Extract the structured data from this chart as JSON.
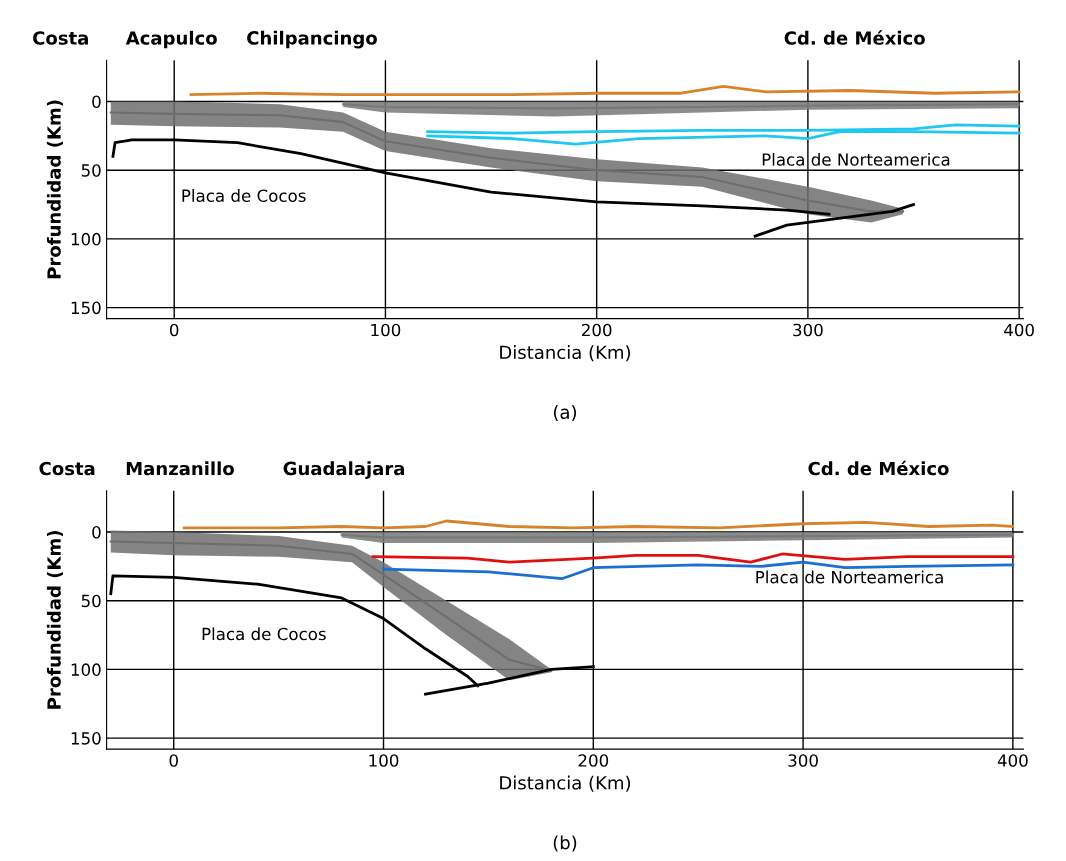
{
  "chart_data": [
    {
      "type": "line",
      "title": "(a)",
      "xlabel": "Distancia (Km)",
      "ylabel": "Profundidad (Km)",
      "xlim": [
        -32,
        402
      ],
      "ylim": [
        158,
        -30
      ],
      "xticks": [
        0,
        100,
        200,
        300,
        400
      ],
      "yticks": [
        0,
        50,
        100,
        150
      ],
      "grid": true,
      "annotations": [
        "Costa",
        "Acapulco",
        "Chilpancingo",
        "Cd. de México",
        "Placa de Norteamerica",
        "Placa de Cocos"
      ],
      "series": [
        {
          "type": "line",
          "color": "#6e6e6e",
          "x": [
            -30,
            0,
            50,
            80,
            100,
            150,
            200,
            250,
            300,
            330,
            345
          ],
          "values": [
            8,
            9,
            10,
            15,
            29,
            41,
            50,
            55,
            72,
            80,
            80
          ],
          "lower": [
            0,
            0,
            2,
            8,
            22,
            34,
            42,
            48,
            62,
            72,
            78
          ],
          "upper": [
            17,
            18,
            19,
            22,
            36,
            48,
            58,
            62,
            82,
            88,
            82
          ]
        },
        {
          "type": "line",
          "color": "#787878",
          "x": [
            80,
            100,
            180,
            250,
            300,
            400
          ],
          "values": [
            2,
            4,
            5,
            4,
            3,
            2
          ],
          "lower": [
            0,
            0,
            0,
            0,
            0,
            0
          ],
          "upper": [
            4,
            8,
            11,
            8,
            6,
            5
          ]
        },
        {
          "type": "line",
          "color": "#d9822b",
          "x": [
            8,
            40,
            80,
            120,
            160,
            200,
            240,
            260,
            280,
            320,
            360,
            400
          ],
          "values": [
            -5,
            -6,
            -5,
            -5,
            -5,
            -6,
            -6,
            -11,
            -7,
            -8,
            -6,
            -7
          ]
        },
        {
          "type": "line",
          "color": "#1ec8f0",
          "x": [
            120,
            160,
            200,
            250,
            300,
            350,
            370,
            400
          ],
          "values": [
            22,
            23,
            22,
            21,
            21,
            20,
            17,
            18
          ]
        },
        {
          "type": "line",
          "color": "#1ec8f0",
          "x": [
            120,
            160,
            190,
            220,
            280,
            300,
            315,
            350,
            400
          ],
          "values": [
            25,
            27,
            31,
            27,
            25,
            27,
            22,
            22,
            23
          ]
        },
        {
          "type": "line",
          "color": "#000000",
          "x": [
            -29,
            -28,
            -20,
            0,
            30,
            60,
            100,
            150,
            200,
            250,
            290,
            310
          ],
          "values": [
            40,
            30,
            28,
            28,
            30,
            38,
            52,
            66,
            73,
            76,
            79,
            82
          ]
        },
        {
          "type": "line",
          "color": "#000000",
          "x": [
            275,
            290,
            320,
            340,
            350
          ],
          "values": [
            98,
            90,
            84,
            80,
            75
          ]
        }
      ]
    },
    {
      "type": "line",
      "title": "(b)",
      "xlabel": "Distancia (Km)",
      "ylabel": "Profundidad (Km)",
      "xlim": [
        -32,
        405
      ],
      "ylim": [
        158,
        -30
      ],
      "xticks": [
        0,
        100,
        200,
        300,
        400
      ],
      "yticks": [
        0,
        50,
        100,
        150
      ],
      "grid": true,
      "annotations": [
        "Costa",
        "Manzanillo",
        "Guadalajara",
        "Cd. de México",
        "Placa de Norteamerica",
        "Placa de Cocos"
      ],
      "series": [
        {
          "type": "line",
          "color": "#6e6e6e",
          "x": [
            -30,
            0,
            50,
            85,
            100,
            130,
            160,
            180
          ],
          "values": [
            7,
            8,
            10,
            16,
            31,
            62,
            93,
            101
          ],
          "lower": [
            -1,
            0,
            3,
            10,
            22,
            50,
            78,
            100
          ],
          "upper": [
            15,
            17,
            18,
            22,
            40,
            75,
            108,
            102
          ]
        },
        {
          "type": "line",
          "color": "#787878",
          "x": [
            80,
            100,
            200,
            300,
            400
          ],
          "values": [
            2,
            4,
            4,
            3,
            2
          ],
          "lower": [
            0,
            0,
            0,
            0,
            0
          ],
          "upper": [
            4,
            8,
            8,
            6,
            4
          ]
        },
        {
          "type": "line",
          "color": "#d9822b",
          "x": [
            5,
            50,
            80,
            100,
            120,
            130,
            160,
            190,
            220,
            260,
            300,
            330,
            360,
            390,
            400
          ],
          "values": [
            -3,
            -3,
            -4,
            -3,
            -4,
            -8,
            -4,
            -3,
            -4,
            -3,
            -6,
            -7,
            -4,
            -5,
            -4
          ]
        },
        {
          "type": "line",
          "color": "#e01010",
          "x": [
            95,
            140,
            160,
            200,
            220,
            250,
            275,
            290,
            320,
            350,
            400
          ],
          "values": [
            18,
            19,
            22,
            19,
            17,
            17,
            22,
            16,
            20,
            18,
            18
          ]
        },
        {
          "type": "line",
          "color": "#1a6fd0",
          "x": [
            100,
            150,
            185,
            200,
            250,
            280,
            300,
            320,
            350,
            400
          ],
          "values": [
            27,
            29,
            34,
            26,
            24,
            25,
            22,
            26,
            25,
            24
          ]
        },
        {
          "type": "line",
          "color": "#000000",
          "x": [
            -30,
            -29,
            0,
            40,
            80,
            100,
            120,
            140,
            145
          ],
          "values": [
            45,
            32,
            33,
            38,
            48,
            63,
            85,
            105,
            112
          ]
        },
        {
          "type": "line",
          "color": "#000000",
          "x": [
            120,
            150,
            180,
            200
          ],
          "values": [
            118,
            110,
            100,
            98
          ]
        }
      ]
    }
  ]
}
